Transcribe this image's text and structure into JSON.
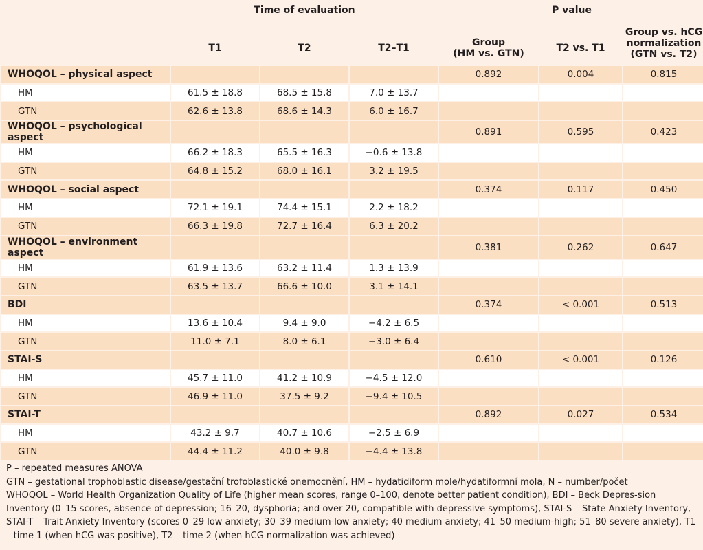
{
  "header": {
    "time_of_evaluation": "Time of evaluation",
    "p_value": "P value",
    "cols": {
      "t1": "T1",
      "t2": "T2",
      "t2_t1": "T2–T1",
      "group_line1": "Group",
      "group_line2": "(HM vs. GTN)",
      "t2_vs_t1": "T2 vs. T1",
      "hcg_line1": "Group vs. hCG",
      "hcg_line2": "normalization",
      "hcg_line3": "(GTN vs. T2)"
    }
  },
  "sections": [
    {
      "title": "WHOQOL – physical aspect",
      "p_group": "0.892",
      "p_time": "0.004",
      "p_hcg": "0.815",
      "hm": {
        "label": "HM",
        "t1": "61.5 ± 18.8",
        "t2": "68.5 ± 15.8",
        "diff": "7.0 ± 13.7"
      },
      "gtn": {
        "label": "GTN",
        "t1": "62.6 ± 13.8",
        "t2": "68.6 ± 14.3",
        "diff": "6.0 ± 16.7"
      }
    },
    {
      "title": "WHOQOL – psychological aspect",
      "p_group": "0.891",
      "p_time": "0.595",
      "p_hcg": "0.423",
      "hm": {
        "label": "HM",
        "t1": "66.2 ± 18.3",
        "t2": "65.5 ± 16.3",
        "diff": "−0.6 ± 13.8"
      },
      "gtn": {
        "label": "GTN",
        "t1": "64.8 ± 15.2",
        "t2": "68.0 ± 16.1",
        "diff": "3.2 ± 19.5"
      }
    },
    {
      "title": "WHOQOL – social aspect",
      "p_group": "0.374",
      "p_time": "0.117",
      "p_hcg": "0.450",
      "hm": {
        "label": "HM",
        "t1": "72.1 ± 19.1",
        "t2": "74.4 ± 15.1",
        "diff": "2.2 ± 18.2"
      },
      "gtn": {
        "label": "GTN",
        "t1": "66.3 ± 19.8",
        "t2": "72.7 ± 16.4",
        "diff": "6.3 ± 20.2"
      }
    },
    {
      "title": "WHOQOL – environment aspect",
      "p_group": "0.381",
      "p_time": "0.262",
      "p_hcg": "0.647",
      "hm": {
        "label": "HM",
        "t1": "61.9 ± 13.6",
        "t2": "63.2 ± 11.4",
        "diff": "1.3 ± 13.9"
      },
      "gtn": {
        "label": "GTN",
        "t1": "63.5 ± 13.7",
        "t2": "66.6 ± 10.0",
        "diff": "3.1 ± 14.1"
      }
    },
    {
      "title": "BDI",
      "p_group": "0.374",
      "p_time": "< 0.001",
      "p_hcg": "0.513",
      "hm": {
        "label": "HM",
        "t1": "13.6 ± 10.4",
        "t2": "9.4 ± 9.0",
        "diff": "−4.2 ± 6.5"
      },
      "gtn": {
        "label": "GTN",
        "t1": "11.0 ± 7.1",
        "t2": "8.0 ± 6.1",
        "diff": "−3.0 ± 6.4"
      }
    },
    {
      "title": "STAI-S",
      "p_group": "0.610",
      "p_time": "< 0.001",
      "p_hcg": "0.126",
      "hm": {
        "label": "HM",
        "t1": "45.7 ± 11.0",
        "t2": "41.2 ± 10.9",
        "diff": "−4.5 ± 12.0"
      },
      "gtn": {
        "label": "GTN",
        "t1": "46.9 ± 11.0",
        "t2": "37.5 ± 9.2",
        "diff": "−9.4 ± 10.5"
      }
    },
    {
      "title": "STAI-T",
      "p_group": "0.892",
      "p_time": "0.027",
      "p_hcg": "0.534",
      "hm": {
        "label": "HM",
        "t1": "43.2 ± 9.7",
        "t2": "40.7 ± 10.6",
        "diff": "−2.5 ± 6.9"
      },
      "gtn": {
        "label": "GTN",
        "t1": "44.4 ± 11.2",
        "t2": "40.0 ± 9.8",
        "diff": "−4.4 ± 13.8"
      }
    }
  ],
  "notes": [
    "P – repeated measures ANOVA",
    "GTN – gestational trophoblastic disease/gestační trofoblastické onemocnění, HM – hydatidiform mole/hydatiformní mola, N – number/počet",
    "WHOQOL – World Health Organization Quality of Life (higher mean scores, range 0–100, denote better patient condition), BDI – Beck Depres-sion Inventory (0–15 scores, absence of depression; 16–20, dysphoria; and over 20, compatible with depressive symptoms), STAI-S – State Anxiety Inventory, STAI-T – Trait Anxiety Inventory (scores 0–29 low anxiety; 30–39 medium-low anxiety; 40 medium anxiety; 41–50 medium-high; 51–80 severe anxiety), T1 – time 1 (when hCG was positive), T2 – time 2 (when hCG normalization was achieved)"
  ]
}
